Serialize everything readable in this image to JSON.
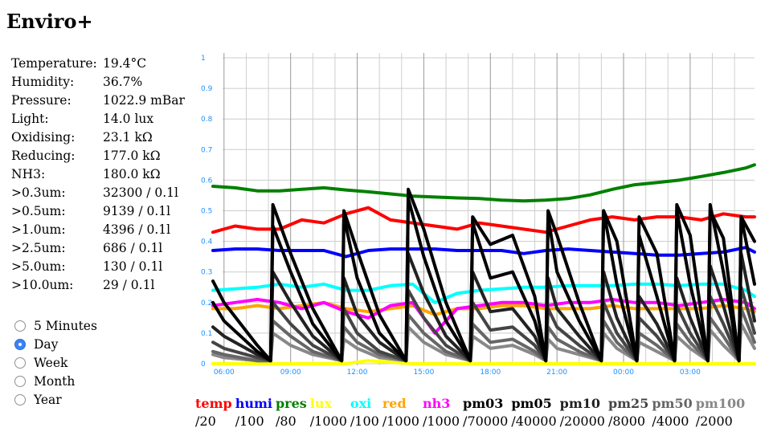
{
  "page": {
    "title": "Enviro+"
  },
  "readings": [
    {
      "label": "Temperature:",
      "value": "19.4°C"
    },
    {
      "label": "Humidity:",
      "value": "36.7%"
    },
    {
      "label": "Pressure:",
      "value": "1022.9 mBar"
    },
    {
      "label": "Light:",
      "value": "14.0 lux"
    },
    {
      "label": "Oxidising:",
      "value": "23.1 kΩ"
    },
    {
      "label": "Reducing:",
      "value": "177.0 kΩ"
    },
    {
      "label": "NH3:",
      "value": "180.0 kΩ"
    },
    {
      "label": ">0.3um:",
      "value": "32300 / 0.1l"
    },
    {
      "label": ">0.5um:",
      "value": "9139 / 0.1l"
    },
    {
      "label": ">1.0um:",
      "value": "4396 / 0.1l"
    },
    {
      "label": ">2.5um:",
      "value": "686 / 0.1l"
    },
    {
      "label": ">5.0um:",
      "value": "130 / 0.1l"
    },
    {
      "label": ">10.0um:",
      "value": "29 / 0.1l"
    }
  ],
  "period_options": [
    {
      "label": "5 Minutes",
      "selected": false
    },
    {
      "label": "Day",
      "selected": true
    },
    {
      "label": "Week",
      "selected": false
    },
    {
      "label": "Month",
      "selected": false
    },
    {
      "label": "Year",
      "selected": false
    }
  ],
  "legend": [
    {
      "name": "temp",
      "scale": "/20",
      "color": "#ff0000"
    },
    {
      "name": "humi",
      "scale": "/100",
      "color": "#0000ff"
    },
    {
      "name": "pres",
      "scale": "/80",
      "color": "#008000"
    },
    {
      "name": "lux",
      "scale": "/1000",
      "color": "#ffff00"
    },
    {
      "name": "oxi",
      "scale": "/100",
      "color": "#00ffff"
    },
    {
      "name": "red",
      "scale": "/1000",
      "color": "#ffa500"
    },
    {
      "name": "nh3",
      "scale": "/1000",
      "color": "#ff00ff"
    },
    {
      "name": "pm03",
      "scale": "/70000",
      "color": "#000000"
    },
    {
      "name": "pm05",
      "scale": "/40000",
      "color": "#000000"
    },
    {
      "name": "pm10",
      "scale": "/20000",
      "color": "#222222"
    },
    {
      "name": "pm25",
      "scale": "/8000",
      "color": "#444444"
    },
    {
      "name": "pm50",
      "scale": "/4000",
      "color": "#666666"
    },
    {
      "name": "pm100",
      "scale": "/2000",
      "color": "#888888"
    }
  ],
  "chart_data": {
    "type": "line",
    "ylim": [
      0,
      1
    ],
    "y_ticks": [
      "0",
      "0.1",
      "0.2",
      "0.3",
      "0.4",
      "0.5",
      "0.6",
      "0.7",
      "0.8",
      "0.9",
      "1"
    ],
    "x_ticks": [
      "06:00",
      "09:00",
      "12:00",
      "15:00",
      "18:00",
      "21:00",
      "00:00",
      "03:00"
    ],
    "x_tick_hours": [
      0,
      3,
      6,
      9,
      12,
      15,
      18,
      21
    ],
    "x_range_hours": [
      -0.5,
      23.9
    ],
    "tick_label_color": "#1e90ff",
    "grid": true,
    "series": [
      {
        "name": "pres",
        "color": "#008000",
        "x": [
          -0.5,
          0.5,
          1.5,
          2.5,
          3.5,
          4.5,
          5.5,
          6.5,
          7.5,
          8.5,
          9.5,
          10.5,
          11.5,
          12.5,
          13.5,
          14.5,
          15.5,
          16.5,
          17.5,
          18.5,
          19.5,
          20.5,
          21.5,
          22.5,
          23.5,
          23.9
        ],
        "values": [
          0.58,
          0.575,
          0.565,
          0.565,
          0.57,
          0.575,
          0.568,
          0.562,
          0.555,
          0.548,
          0.545,
          0.542,
          0.54,
          0.535,
          0.532,
          0.535,
          0.54,
          0.552,
          0.57,
          0.585,
          0.592,
          0.6,
          0.612,
          0.625,
          0.64,
          0.65
        ]
      },
      {
        "name": "temp",
        "color": "#ff0000",
        "x": [
          -0.5,
          0.5,
          1.5,
          2.5,
          3.5,
          4.5,
          5.5,
          6.5,
          7.5,
          8.5,
          9.5,
          10.5,
          11.5,
          12.5,
          13.5,
          14.5,
          15.5,
          16.5,
          17.5,
          18.5,
          19.5,
          20.5,
          21.5,
          22.5,
          23.5,
          23.9
        ],
        "values": [
          0.43,
          0.45,
          0.44,
          0.44,
          0.47,
          0.46,
          0.49,
          0.51,
          0.47,
          0.46,
          0.45,
          0.44,
          0.46,
          0.45,
          0.44,
          0.43,
          0.45,
          0.47,
          0.48,
          0.47,
          0.48,
          0.48,
          0.47,
          0.49,
          0.48,
          0.48
        ]
      },
      {
        "name": "humi",
        "color": "#0000ff",
        "x": [
          -0.5,
          0.5,
          1.5,
          2.5,
          3.5,
          4.5,
          5.5,
          6.5,
          7.5,
          8.5,
          9.5,
          10.5,
          11.5,
          12.5,
          13.5,
          14.5,
          15.5,
          16.5,
          17.5,
          18.5,
          19.5,
          20.5,
          21.5,
          22.5,
          23.5,
          23.9
        ],
        "values": [
          0.37,
          0.375,
          0.375,
          0.37,
          0.37,
          0.37,
          0.35,
          0.37,
          0.375,
          0.375,
          0.375,
          0.37,
          0.37,
          0.37,
          0.36,
          0.37,
          0.375,
          0.37,
          0.365,
          0.36,
          0.355,
          0.355,
          0.36,
          0.365,
          0.38,
          0.365
        ]
      },
      {
        "name": "oxi",
        "color": "#00ffff",
        "x": [
          -0.5,
          0.5,
          1.5,
          2.5,
          3.5,
          4.5,
          5.5,
          6.5,
          7.5,
          8.5,
          9.5,
          10.5,
          11.5,
          12.5,
          13.5,
          14.5,
          15.5,
          16.5,
          17.5,
          18.5,
          19.5,
          20.5,
          21.5,
          22.5,
          23.5,
          23.9
        ],
        "values": [
          0.24,
          0.245,
          0.25,
          0.26,
          0.25,
          0.26,
          0.24,
          0.24,
          0.255,
          0.26,
          0.2,
          0.23,
          0.24,
          0.245,
          0.25,
          0.25,
          0.255,
          0.255,
          0.255,
          0.26,
          0.26,
          0.255,
          0.26,
          0.26,
          0.24,
          0.22
        ]
      },
      {
        "name": "red",
        "color": "#ffa500",
        "x": [
          -0.5,
          0.5,
          1.5,
          2.5,
          3.5,
          4.5,
          5.5,
          6.5,
          7.5,
          8.5,
          9.5,
          10.5,
          11.5,
          12.5,
          13.5,
          14.5,
          15.5,
          16.5,
          17.5,
          18.5,
          19.5,
          20.5,
          21.5,
          22.5,
          23.5,
          23.9
        ],
        "values": [
          0.18,
          0.18,
          0.19,
          0.18,
          0.19,
          0.2,
          0.18,
          0.17,
          0.18,
          0.19,
          0.16,
          0.18,
          0.18,
          0.19,
          0.19,
          0.18,
          0.18,
          0.18,
          0.19,
          0.18,
          0.18,
          0.18,
          0.18,
          0.19,
          0.18,
          0.17
        ]
      },
      {
        "name": "nh3",
        "color": "#ff00ff",
        "x": [
          -0.5,
          0.5,
          1.5,
          2.5,
          3.5,
          4.5,
          5.5,
          6.5,
          7.5,
          8.5,
          9.5,
          10.5,
          11.5,
          12.5,
          13.5,
          14.5,
          15.5,
          16.5,
          17.5,
          18.5,
          19.5,
          20.5,
          21.5,
          22.5,
          23.5,
          23.9
        ],
        "values": [
          0.19,
          0.2,
          0.21,
          0.2,
          0.18,
          0.2,
          0.17,
          0.15,
          0.19,
          0.2,
          0.1,
          0.18,
          0.19,
          0.2,
          0.2,
          0.19,
          0.2,
          0.2,
          0.21,
          0.2,
          0.2,
          0.19,
          0.2,
          0.21,
          0.2,
          0.18
        ]
      },
      {
        "name": "lux",
        "color": "#ffff00",
        "x": [
          -0.5,
          1.5,
          3.5,
          5.5,
          6.5,
          8.5,
          10.5,
          12.5,
          14.5,
          16.5,
          18.5,
          20.5,
          22.5,
          23.9
        ],
        "values": [
          0.0,
          0.0,
          0.0,
          0.0,
          0.01,
          0.0,
          0.0,
          0.0,
          0.0,
          0.0,
          0.0,
          0.0,
          0.0,
          0.0
        ]
      },
      {
        "name": "pm100",
        "color": "#888888",
        "x": [
          -0.5,
          0,
          1.5,
          2.1,
          2.2,
          3,
          4,
          5.3,
          5.4,
          6,
          7,
          8.2,
          8.3,
          9,
          10,
          11.1,
          11.2,
          12,
          13,
          14,
          14.5,
          14.6,
          15,
          16,
          17.0,
          17.1,
          17.7,
          18.6,
          18.7,
          19.5,
          20.3,
          20.4,
          21,
          21.8,
          21.9,
          22.5,
          23.2,
          23.3,
          23.9
        ],
        "values": [
          0.03,
          0.02,
          0.01,
          0.01,
          0.1,
          0.06,
          0.03,
          0.01,
          0.08,
          0.05,
          0.02,
          0.01,
          0.12,
          0.07,
          0.03,
          0.01,
          0.09,
          0.05,
          0.06,
          0.03,
          0.01,
          0.08,
          0.05,
          0.03,
          0.01,
          0.1,
          0.05,
          0.01,
          0.07,
          0.04,
          0.01,
          0.09,
          0.05,
          0.01,
          0.11,
          0.06,
          0.01,
          0.13,
          0.05
        ]
      },
      {
        "name": "pm50",
        "color": "#666666",
        "x": [
          -0.5,
          0,
          1.5,
          2.1,
          2.2,
          3,
          4,
          5.3,
          5.4,
          6,
          7,
          8.2,
          8.3,
          9,
          10,
          11.1,
          11.2,
          12,
          13,
          14,
          14.5,
          14.6,
          15,
          16,
          17.0,
          17.1,
          17.7,
          18.6,
          18.7,
          19.5,
          20.3,
          20.4,
          21,
          21.8,
          21.9,
          22.5,
          23.2,
          23.3,
          23.9
        ],
        "values": [
          0.04,
          0.03,
          0.01,
          0.01,
          0.14,
          0.09,
          0.04,
          0.01,
          0.12,
          0.07,
          0.03,
          0.01,
          0.16,
          0.1,
          0.04,
          0.01,
          0.13,
          0.07,
          0.08,
          0.04,
          0.01,
          0.12,
          0.08,
          0.04,
          0.01,
          0.14,
          0.07,
          0.01,
          0.1,
          0.06,
          0.01,
          0.13,
          0.07,
          0.01,
          0.15,
          0.09,
          0.01,
          0.18,
          0.07
        ]
      },
      {
        "name": "pm25",
        "color": "#444444",
        "x": [
          -0.5,
          0,
          1.5,
          2.1,
          2.2,
          3,
          4,
          5.3,
          5.4,
          6,
          7,
          8.2,
          8.3,
          9,
          10,
          11.1,
          11.2,
          12,
          13,
          14,
          14.5,
          14.6,
          15,
          16,
          17.0,
          17.1,
          17.7,
          18.6,
          18.7,
          19.5,
          20.3,
          20.4,
          21,
          21.8,
          21.9,
          22.5,
          23.2,
          23.3,
          23.9
        ],
        "values": [
          0.07,
          0.05,
          0.02,
          0.01,
          0.2,
          0.13,
          0.06,
          0.01,
          0.18,
          0.1,
          0.04,
          0.01,
          0.24,
          0.15,
          0.06,
          0.01,
          0.2,
          0.11,
          0.12,
          0.06,
          0.01,
          0.18,
          0.12,
          0.06,
          0.01,
          0.2,
          0.1,
          0.01,
          0.15,
          0.09,
          0.01,
          0.19,
          0.1,
          0.01,
          0.22,
          0.13,
          0.01,
          0.25,
          0.1
        ]
      },
      {
        "name": "pm10",
        "color": "#222222",
        "x": [
          -0.5,
          0,
          1.5,
          2.1,
          2.2,
          3,
          4,
          5.3,
          5.4,
          6,
          7,
          8.2,
          8.3,
          9,
          10,
          11.1,
          11.2,
          12,
          13,
          14,
          14.5,
          14.6,
          15,
          16,
          17.0,
          17.1,
          17.7,
          18.6,
          18.7,
          19.5,
          20.3,
          20.4,
          21,
          21.8,
          21.9,
          22.5,
          23.2,
          23.3,
          23.9
        ],
        "values": [
          0.12,
          0.09,
          0.03,
          0.01,
          0.3,
          0.2,
          0.09,
          0.01,
          0.28,
          0.16,
          0.07,
          0.01,
          0.36,
          0.23,
          0.09,
          0.01,
          0.3,
          0.17,
          0.18,
          0.09,
          0.01,
          0.28,
          0.18,
          0.09,
          0.01,
          0.3,
          0.15,
          0.01,
          0.22,
          0.13,
          0.01,
          0.28,
          0.15,
          0.01,
          0.32,
          0.19,
          0.01,
          0.36,
          0.14
        ]
      },
      {
        "name": "pm05",
        "color": "#000000",
        "x": [
          -0.5,
          0,
          1.5,
          2.1,
          2.2,
          3,
          4,
          5.3,
          5.4,
          6,
          7,
          8.2,
          8.3,
          9,
          10,
          11.1,
          11.2,
          12,
          13,
          14,
          14.5,
          14.6,
          15,
          16,
          17.0,
          17.1,
          17.7,
          18.6,
          18.7,
          19.5,
          20.3,
          20.4,
          21,
          21.8,
          21.9,
          22.5,
          23.2,
          23.3,
          23.9
        ],
        "values": [
          0.2,
          0.14,
          0.04,
          0.01,
          0.45,
          0.3,
          0.13,
          0.01,
          0.48,
          0.28,
          0.1,
          0.01,
          0.54,
          0.35,
          0.14,
          0.01,
          0.46,
          0.28,
          0.3,
          0.14,
          0.01,
          0.48,
          0.3,
          0.14,
          0.01,
          0.5,
          0.26,
          0.01,
          0.42,
          0.22,
          0.01,
          0.5,
          0.26,
          0.01,
          0.52,
          0.3,
          0.01,
          0.48,
          0.26
        ]
      },
      {
        "name": "pm03",
        "color": "#000000",
        "x": [
          -0.5,
          0,
          1.5,
          2.1,
          2.2,
          3,
          4,
          5.3,
          5.4,
          6,
          7,
          8.2,
          8.3,
          9,
          10,
          11.1,
          11.2,
          12,
          13,
          14,
          14.5,
          14.6,
          15,
          16,
          17.0,
          17.1,
          17.7,
          18.6,
          18.7,
          19.5,
          20.3,
          20.4,
          21,
          21.8,
          21.9,
          22.5,
          23.2,
          23.3,
          23.9
        ],
        "values": [
          0.27,
          0.2,
          0.06,
          0.01,
          0.52,
          0.36,
          0.18,
          0.01,
          0.5,
          0.37,
          0.16,
          0.01,
          0.57,
          0.44,
          0.2,
          0.01,
          0.48,
          0.39,
          0.42,
          0.22,
          0.01,
          0.5,
          0.42,
          0.2,
          0.01,
          0.5,
          0.4,
          0.01,
          0.48,
          0.36,
          0.01,
          0.52,
          0.42,
          0.01,
          0.5,
          0.41,
          0.01,
          0.48,
          0.4
        ]
      }
    ]
  }
}
